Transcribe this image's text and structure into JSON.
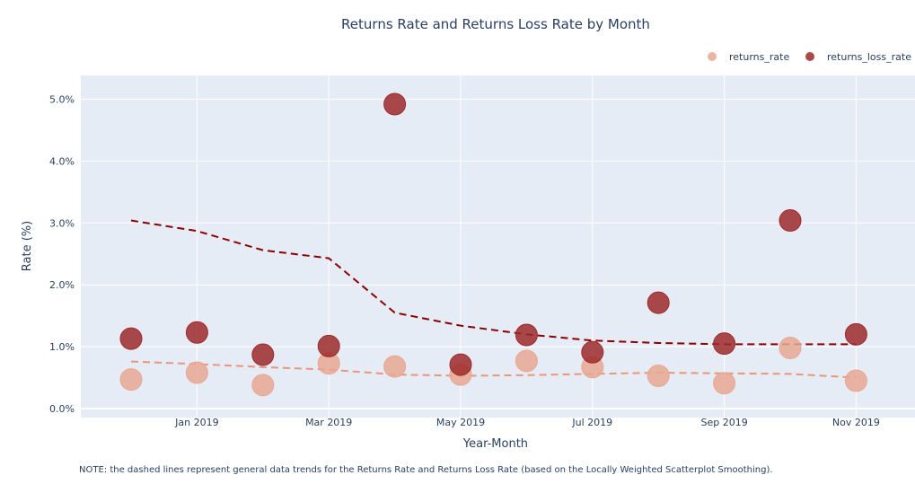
{
  "chart_data": {
    "type": "scatter",
    "title": "Returns Rate and Returns Loss Rate by Month",
    "xlabel": "Year-Month",
    "ylabel": "Rate (%)",
    "x": [
      "2018-12",
      "2019-01",
      "2019-02",
      "2019-03",
      "2019-04",
      "2019-05",
      "2019-06",
      "2019-07",
      "2019-08",
      "2019-09",
      "2019-10",
      "2019-11"
    ],
    "x_ticks": [
      "Jan 2019",
      "Mar 2019",
      "May 2019",
      "Jul 2019",
      "Sep 2019",
      "Nov 2019"
    ],
    "y_ticks": [
      "0.0%",
      "1.0%",
      "2.0%",
      "3.0%",
      "4.0%",
      "5.0%"
    ],
    "ylim": [
      -0.1,
      5.4
    ],
    "grid": true,
    "legend_position": "top-right",
    "series": [
      {
        "name": "returns_rate",
        "color": "#e8a892",
        "values": [
          0.47,
          0.58,
          0.38,
          0.73,
          0.68,
          0.55,
          0.77,
          0.67,
          0.53,
          0.41,
          0.98,
          0.45
        ],
        "trend": [
          0.76,
          0.72,
          0.67,
          0.63,
          0.55,
          0.53,
          0.54,
          0.56,
          0.58,
          0.57,
          0.56,
          0.5
        ],
        "trend_color": "#e9967a"
      },
      {
        "name": "returns_loss_rate",
        "color": "#9e2a2b",
        "values": [
          1.13,
          1.23,
          0.87,
          1.01,
          4.92,
          0.71,
          1.19,
          0.91,
          1.71,
          1.05,
          3.04,
          1.2
        ],
        "trend": [
          3.04,
          2.87,
          2.56,
          2.43,
          1.55,
          1.34,
          1.2,
          1.1,
          1.06,
          1.04,
          1.04,
          1.04
        ],
        "trend_color": "#8b0000"
      }
    ],
    "note": "NOTE: the dashed lines represent general data trends for the Returns Rate and Returns Loss Rate (based on the Locally Weighted Scatterplot Smoothing)."
  }
}
